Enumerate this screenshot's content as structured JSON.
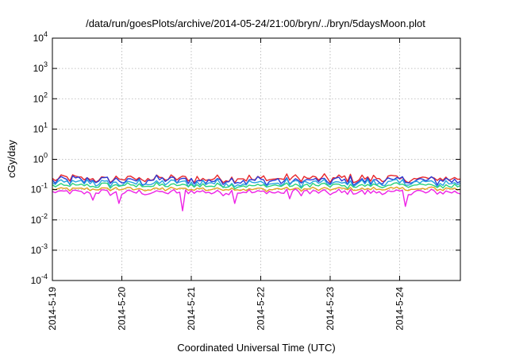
{
  "chart_data": {
    "type": "line",
    "title": "/data/run/goesPlots/archive/2014-05-24/21:00/bryn/../bryn/5daysMoon.plot",
    "xlabel": "Coordinated Universal Time (UTC)",
    "ylabel": "cGy/day",
    "yscale": "log",
    "ylim": [
      0.0001,
      10000
    ],
    "y_ticks": [
      {
        "base": "10",
        "exp": "-4",
        "value": 0.0001
      },
      {
        "base": "10",
        "exp": "-3",
        "value": 0.001
      },
      {
        "base": "10",
        "exp": "-2",
        "value": 0.01
      },
      {
        "base": "10",
        "exp": "-1",
        "value": 0.1
      },
      {
        "base": "10",
        "exp": "0",
        "value": 1
      },
      {
        "base": "10",
        "exp": "1",
        "value": 10
      },
      {
        "base": "10",
        "exp": "2",
        "value": 100
      },
      {
        "base": "10",
        "exp": "3",
        "value": 1000
      },
      {
        "base": "10",
        "exp": "4",
        "value": 10000
      }
    ],
    "xlim": [
      "2014-05-19T00:00",
      "2014-05-24T21:00"
    ],
    "x_ticks": [
      "2014-5-19",
      "2014-5-20",
      "2014-5-21",
      "2014-5-22",
      "2014-5-23",
      "2014-5-24"
    ],
    "grid": true,
    "sampling": "hourly",
    "series": [
      {
        "color": "#e8262a",
        "level": 0.23,
        "spread": 0.3,
        "dips": []
      },
      {
        "color": "#2a3cd6",
        "level": 0.2,
        "spread": 0.32,
        "dips": []
      },
      {
        "color": "#29a3e0",
        "level": 0.165,
        "spread": 0.28,
        "dips": []
      },
      {
        "color": "#2bd37a",
        "level": 0.135,
        "spread": 0.2,
        "dips": []
      },
      {
        "color": "#e0a020",
        "level": 0.105,
        "spread": 0.15,
        "dips": []
      },
      {
        "color": "#ee22e6",
        "level": 0.082,
        "spread": 0.22,
        "dips": [
          {
            "date": "2014-05-19T14:00",
            "value": 0.045
          },
          {
            "date": "2014-05-19T23:00",
            "value": 0.035
          },
          {
            "date": "2014-05-20T21:00",
            "value": 0.02
          },
          {
            "date": "2014-05-21T15:00",
            "value": 0.035
          },
          {
            "date": "2014-05-22T10:00",
            "value": 0.05
          },
          {
            "date": "2014-05-24T02:00",
            "value": 0.028
          }
        ]
      }
    ]
  }
}
